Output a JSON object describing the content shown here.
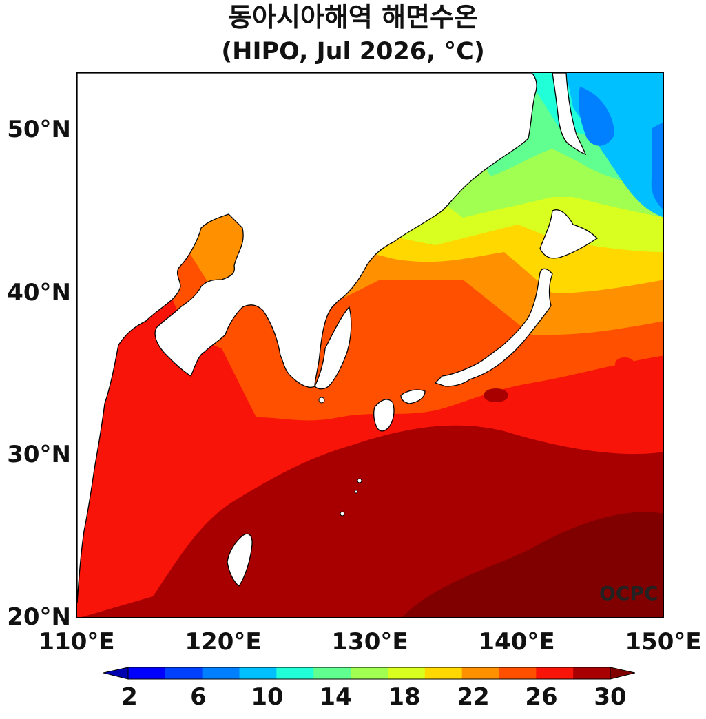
{
  "title": {
    "line1": "동아시아해역 해면수온",
    "line2": "(HIPO, Jul 2026, °C)"
  },
  "map": {
    "lon_range": [
      110,
      150
    ],
    "lat_range": [
      20,
      53.5
    ],
    "lat_ticks": [
      "50°N",
      "40°N",
      "30°N",
      "20°N"
    ],
    "lon_ticks": [
      "110°E",
      "120°E",
      "130°E",
      "140°E",
      "150°E"
    ],
    "land_color": "#ffffff",
    "coastline_color": "#000000"
  },
  "colorbar": {
    "labels": [
      "2",
      "6",
      "10",
      "14",
      "18",
      "22",
      "26",
      "30"
    ],
    "colors": [
      "#0000b0",
      "#0000ff",
      "#0040ff",
      "#0080ff",
      "#00c0ff",
      "#20ffd8",
      "#60ff90",
      "#a0ff50",
      "#d8ff20",
      "#ffd800",
      "#ff9000",
      "#ff5000",
      "#f81408",
      "#a80000",
      "#800000"
    ],
    "extend": "both"
  },
  "credit": "OCPC"
}
